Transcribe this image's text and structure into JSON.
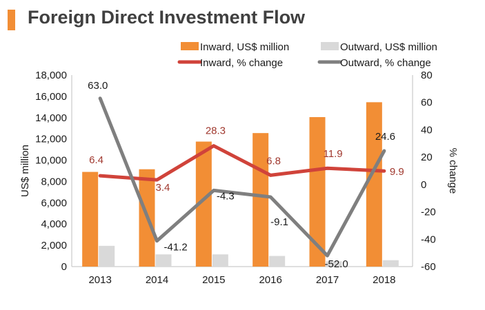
{
  "header": {
    "title": "Foreign Direct Investment Flow",
    "accent_color": "#F28E35"
  },
  "chart_data": {
    "type": "bar",
    "title": "Foreign Direct Investment Flow",
    "categories": [
      "2013",
      "2014",
      "2015",
      "2016",
      "2017",
      "2018"
    ],
    "ylabel": "US$ million",
    "y2label": "% change",
    "ylim": [
      0,
      18000
    ],
    "y2lim": [
      -60,
      80
    ],
    "yticks": [
      "0",
      "2,000",
      "4,000",
      "6,000",
      "8,000",
      "10,000",
      "12,000",
      "14,000",
      "16,000",
      "18,000"
    ],
    "y2ticks": [
      "-60",
      "-40",
      "-20",
      "0",
      "20",
      "40",
      "60",
      "80"
    ],
    "grid": false,
    "legend": "top-right",
    "series": [
      {
        "name": "Inward, US$ million",
        "type": "bar",
        "axis": "left",
        "color": "#F28E35",
        "values": [
          8900,
          9150,
          11750,
          12550,
          14050,
          15450
        ]
      },
      {
        "name": "Outward, US$ million",
        "type": "bar",
        "axis": "left",
        "color": "#D9D9D9",
        "values": [
          1950,
          1150,
          1150,
          1000,
          500,
          600
        ]
      },
      {
        "name": "Inward, % change",
        "type": "line",
        "axis": "right",
        "color": "#D0433A",
        "values": [
          6.4,
          3.4,
          28.3,
          6.8,
          11.9,
          9.9
        ],
        "labels": [
          "6.4",
          "3.4",
          "28.3",
          "6.8",
          "11.9",
          "9.9"
        ],
        "label_color": "#A0382E"
      },
      {
        "name": "Outward, % change",
        "type": "line",
        "axis": "right",
        "color": "#7F7F7F",
        "values": [
          63.0,
          -41.2,
          -4.3,
          -9.1,
          -52.0,
          24.6
        ],
        "labels": [
          "63.0",
          "-41.2",
          "-4.3",
          "-9.1",
          "-52.0",
          "24.6"
        ],
        "label_color": "#1A1A1A"
      }
    ]
  }
}
